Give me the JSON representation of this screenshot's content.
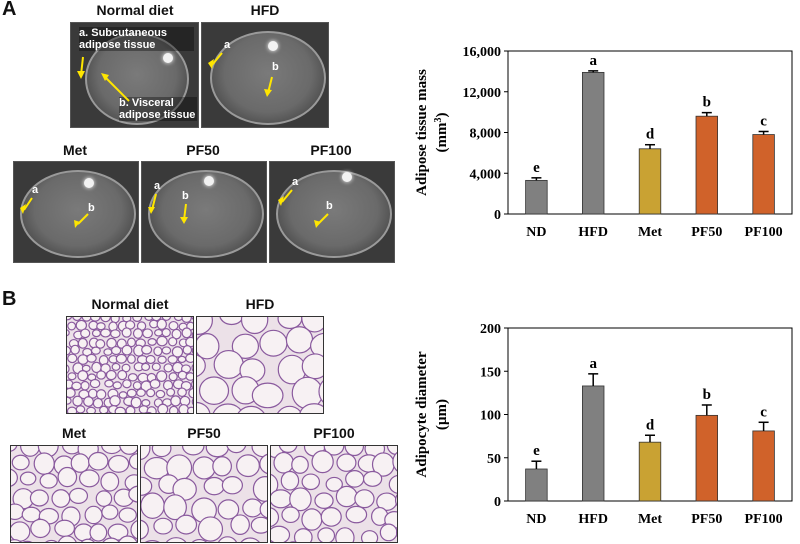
{
  "panelA": {
    "letter": "A",
    "images": {
      "normal_diet": "Normal diet",
      "hfd": "HFD",
      "met": "Met",
      "pf50": "PF50",
      "pf100": "PF100"
    },
    "annotations": {
      "subcutaneous": "a. Subcutaneous adipose tissue",
      "visceral": "b. Visceral adipose tissue",
      "mark_a": "a",
      "mark_b": "b"
    }
  },
  "panelB": {
    "letter": "B",
    "images": {
      "normal_diet": "Normal diet",
      "hfd": "HFD",
      "met": "Met",
      "pf50": "PF50",
      "pf100": "PF100"
    }
  },
  "chart_data": [
    {
      "type": "bar",
      "ylabel": "Adipose tissue mass",
      "ylabel_unit_base": "(mm",
      "ylabel_unit_sup": "3",
      "ylabel_unit_end": ")",
      "categories": [
        "ND",
        "HFD",
        "Met",
        "PF50",
        "PF100"
      ],
      "values": [
        3300,
        13900,
        6400,
        9600,
        7800
      ],
      "errors": [
        250,
        150,
        400,
        350,
        300
      ],
      "letters": [
        "e",
        "a",
        "d",
        "b",
        "c"
      ],
      "colors": [
        "#808080",
        "#808080",
        "#c9a233",
        "#d0622a",
        "#d0622a"
      ],
      "ylim": [
        0,
        16000
      ],
      "yticks": [
        0,
        4000,
        8000,
        12000,
        16000
      ],
      "ytick_labels": [
        "0",
        "4,000",
        "8,000",
        "12,000",
        "16,000"
      ]
    },
    {
      "type": "bar",
      "ylabel": "Adipocyte diameter",
      "ylabel_unit": "(µm)",
      "categories": [
        "ND",
        "HFD",
        "Met",
        "PF50",
        "PF100"
      ],
      "values": [
        37,
        133,
        68,
        99,
        81
      ],
      "errors": [
        9,
        14,
        8,
        12,
        10
      ],
      "letters": [
        "e",
        "a",
        "d",
        "b",
        "c"
      ],
      "colors": [
        "#808080",
        "#808080",
        "#c9a233",
        "#d0622a",
        "#d0622a"
      ],
      "ylim": [
        0,
        200
      ],
      "yticks": [
        0,
        50,
        100,
        150,
        200
      ],
      "ytick_labels": [
        "0",
        "50",
        "100",
        "150",
        "200"
      ]
    }
  ]
}
